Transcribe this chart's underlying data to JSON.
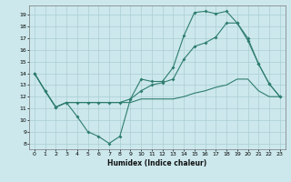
{
  "xlabel": "Humidex (Indice chaleur)",
  "ylabel": "",
  "background_color": "#cce8ed",
  "grid_color": "#aacdd4",
  "line_color": "#2e7d6e",
  "xlim": [
    -0.5,
    23.5
  ],
  "ylim": [
    7.5,
    19.8
  ],
  "yticks": [
    8,
    9,
    10,
    11,
    12,
    13,
    14,
    15,
    16,
    17,
    18,
    19
  ],
  "xticks": [
    0,
    1,
    2,
    3,
    4,
    5,
    6,
    7,
    8,
    9,
    10,
    11,
    12,
    13,
    14,
    15,
    16,
    17,
    18,
    19,
    20,
    21,
    22,
    23
  ],
  "series1_x": [
    0,
    1,
    2,
    3,
    4,
    5,
    6,
    7,
    8,
    9,
    10,
    11,
    12,
    13,
    14,
    15,
    16,
    17,
    18,
    19,
    20,
    21,
    22,
    23
  ],
  "series1_y": [
    14.0,
    12.5,
    11.1,
    11.5,
    10.3,
    9.0,
    8.6,
    8.0,
    8.6,
    11.8,
    13.5,
    13.3,
    13.3,
    14.5,
    17.2,
    19.2,
    19.3,
    19.1,
    19.3,
    18.3,
    16.8,
    14.8,
    13.1,
    12.0
  ],
  "series2_x": [
    0,
    1,
    2,
    3,
    4,
    5,
    6,
    7,
    8,
    9,
    10,
    11,
    12,
    13,
    14,
    15,
    16,
    17,
    18,
    19,
    20,
    21,
    22,
    23
  ],
  "series2_y": [
    14.0,
    12.5,
    11.1,
    11.5,
    11.5,
    11.5,
    11.5,
    11.5,
    11.5,
    11.8,
    12.5,
    13.0,
    13.2,
    13.5,
    15.2,
    16.3,
    16.6,
    17.1,
    18.3,
    18.3,
    17.0,
    14.8,
    13.1,
    12.0
  ],
  "series3_x": [
    0,
    1,
    2,
    3,
    4,
    5,
    6,
    7,
    8,
    9,
    10,
    11,
    12,
    13,
    14,
    15,
    16,
    17,
    18,
    19,
    20,
    21,
    22,
    23
  ],
  "series3_y": [
    14.0,
    12.5,
    11.1,
    11.5,
    11.5,
    11.5,
    11.5,
    11.5,
    11.5,
    11.5,
    11.8,
    11.8,
    11.8,
    11.8,
    12.0,
    12.3,
    12.5,
    12.8,
    13.0,
    13.5,
    13.5,
    12.5,
    12.0,
    12.0
  ]
}
